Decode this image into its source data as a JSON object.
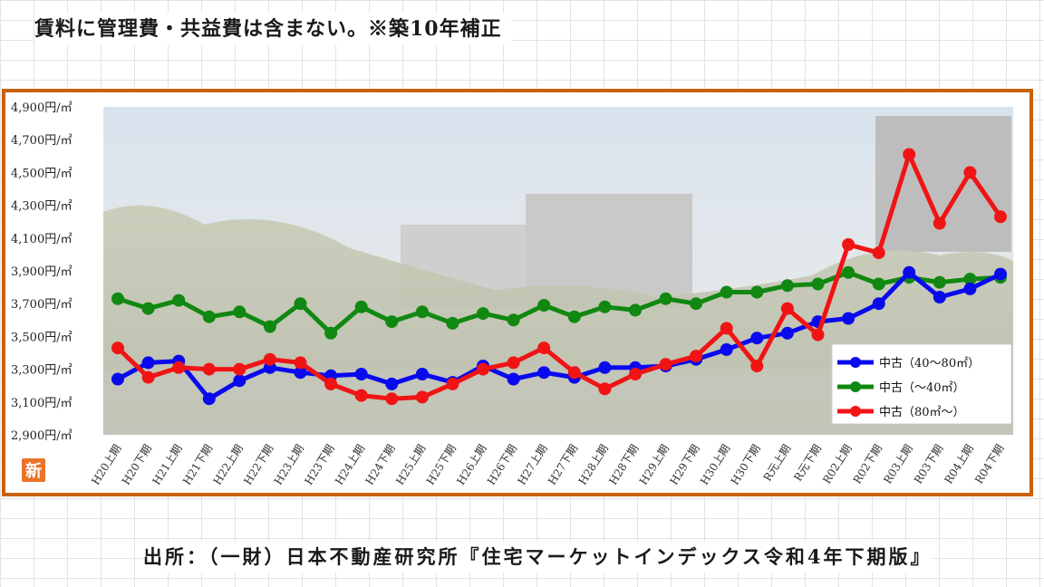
{
  "header": {
    "note": "賃料に管理費・共益費は含まない。※築10年補正"
  },
  "footer": {
    "source": "出所：（一財）日本不動産研究所『住宅マーケットインデックス令和4年下期版』"
  },
  "logo": {
    "text": "新",
    "color": "#e8742a"
  },
  "colors": {
    "frame": "#c8620b"
  },
  "chart_data": {
    "type": "line",
    "y_unit_suffix": "円/㎡",
    "ylim": [
      2900,
      4900
    ],
    "yticks": [
      2900,
      3100,
      3300,
      3500,
      3700,
      3900,
      4100,
      4300,
      4500,
      4700,
      4900
    ],
    "ytick_labels": [
      "2,900円/㎡",
      "3,100円/㎡",
      "3,300円/㎡",
      "3,500円/㎡",
      "3,700円/㎡",
      "3,900円/㎡",
      "4,100円/㎡",
      "4,300円/㎡",
      "4,500円/㎡",
      "4,700円/㎡",
      "4,900円/㎡"
    ],
    "categories": [
      "H20上期",
      "H20下期",
      "H21上期",
      "H21下期",
      "H22上期",
      "H22下期",
      "H23上期",
      "H23下期",
      "H24上期",
      "H24下期",
      "H25上期",
      "H25下期",
      "H26上期",
      "H26下期",
      "H27上期",
      "H27下期",
      "H28上期",
      "H28下期",
      "H29上期",
      "H29下期",
      "H30上期",
      "H30下期",
      "R元上期",
      "R元下期",
      "R02上期",
      "R02下期",
      "R03上期",
      "R03下期",
      "R04上期",
      "R04下期"
    ],
    "legend_position": "right",
    "grid": false,
    "series": [
      {
        "name": "中古（40～80㎡）",
        "color": "#0a0aee",
        "values": [
          3240,
          3340,
          3350,
          3120,
          3230,
          3310,
          3280,
          3260,
          3270,
          3210,
          3270,
          3220,
          3320,
          3240,
          3280,
          3250,
          3310,
          3310,
          3320,
          3360,
          3420,
          3490,
          3520,
          3590,
          3610,
          3700,
          3890,
          3740,
          3790,
          3880
        ]
      },
      {
        "name": "中古（～40㎡）",
        "color": "#118811",
        "values": [
          3730,
          3670,
          3720,
          3620,
          3650,
          3560,
          3700,
          3520,
          3680,
          3590,
          3650,
          3580,
          3640,
          3600,
          3690,
          3620,
          3680,
          3660,
          3730,
          3700,
          3770,
          3770,
          3810,
          3820,
          3890,
          3820,
          3860,
          3830,
          3850,
          3860
        ]
      },
      {
        "name": "中古（80㎡～）",
        "color": "#f01414",
        "values": [
          3430,
          3250,
          3310,
          3300,
          3300,
          3360,
          3340,
          3210,
          3140,
          3120,
          3130,
          3210,
          3300,
          3340,
          3430,
          3280,
          3180,
          3270,
          3330,
          3380,
          3550,
          3320,
          3670,
          3510,
          4060,
          4010,
          4610,
          4190,
          4500,
          4230
        ]
      }
    ]
  }
}
